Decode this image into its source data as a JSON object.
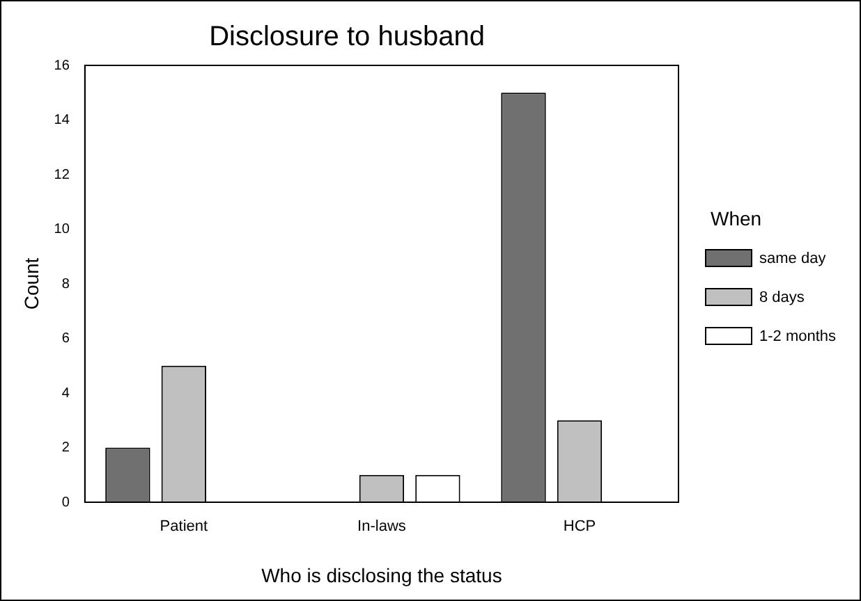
{
  "chart_data": {
    "type": "bar",
    "title": "Disclosure to husband",
    "xlabel": "Who is disclosing the status",
    "ylabel": "Count",
    "legend_title": "When",
    "categories": [
      "Patient",
      "In-laws",
      "HCP"
    ],
    "series": [
      {
        "name": "same day",
        "color": "#707070",
        "values": [
          2,
          null,
          15
        ]
      },
      {
        "name": "8 days",
        "color": "#c0c0c0",
        "values": [
          5,
          1,
          3
        ]
      },
      {
        "name": "1-2 months",
        "color": "#ffffff",
        "values": [
          null,
          1,
          null
        ]
      }
    ],
    "ylim": [
      0,
      16
    ],
    "yticks": [
      0,
      2,
      4,
      6,
      8,
      10,
      12,
      14,
      16
    ],
    "grid": false,
    "legend": "right"
  }
}
